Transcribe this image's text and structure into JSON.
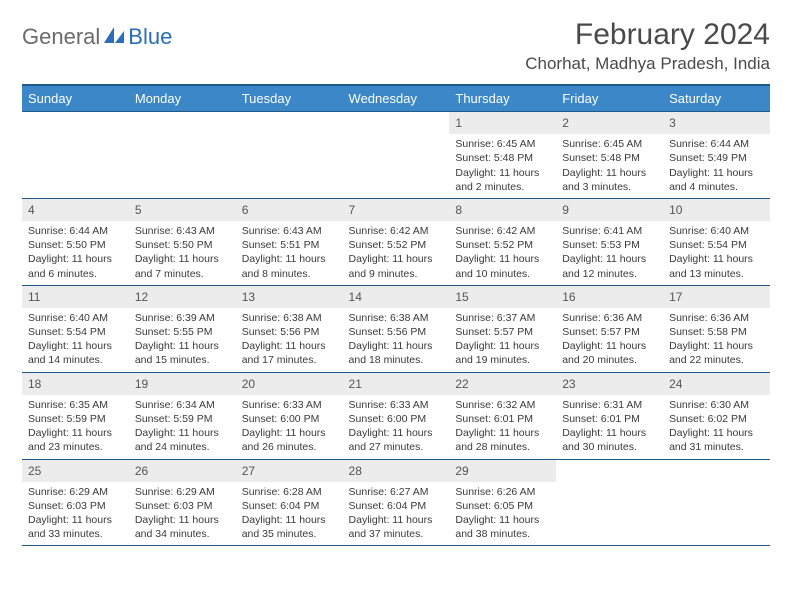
{
  "logo": {
    "text1": "General",
    "text2": "Blue"
  },
  "title": "February 2024",
  "location": "Chorhat, Madhya Pradesh, India",
  "colors": {
    "header_bg": "#3b87c8",
    "header_border": "#1f5a8a",
    "daynum_bg": "#ececec",
    "text": "#3a3a3a",
    "logo_gray": "#6b6b6b",
    "logo_blue": "#2a6db8"
  },
  "typography": {
    "month_title_fontsize": 30,
    "location_fontsize": 17,
    "dayheader_fontsize": 13,
    "daynum_fontsize": 12,
    "body_fontsize": 10.5
  },
  "day_headers": [
    "Sunday",
    "Monday",
    "Tuesday",
    "Wednesday",
    "Thursday",
    "Friday",
    "Saturday"
  ],
  "weeks": [
    [
      null,
      null,
      null,
      null,
      {
        "n": "1",
        "sr": "Sunrise: 6:45 AM",
        "ss": "Sunset: 5:48 PM",
        "dl1": "Daylight: 11 hours",
        "dl2": "and 2 minutes."
      },
      {
        "n": "2",
        "sr": "Sunrise: 6:45 AM",
        "ss": "Sunset: 5:48 PM",
        "dl1": "Daylight: 11 hours",
        "dl2": "and 3 minutes."
      },
      {
        "n": "3",
        "sr": "Sunrise: 6:44 AM",
        "ss": "Sunset: 5:49 PM",
        "dl1": "Daylight: 11 hours",
        "dl2": "and 4 minutes."
      }
    ],
    [
      {
        "n": "4",
        "sr": "Sunrise: 6:44 AM",
        "ss": "Sunset: 5:50 PM",
        "dl1": "Daylight: 11 hours",
        "dl2": "and 6 minutes."
      },
      {
        "n": "5",
        "sr": "Sunrise: 6:43 AM",
        "ss": "Sunset: 5:50 PM",
        "dl1": "Daylight: 11 hours",
        "dl2": "and 7 minutes."
      },
      {
        "n": "6",
        "sr": "Sunrise: 6:43 AM",
        "ss": "Sunset: 5:51 PM",
        "dl1": "Daylight: 11 hours",
        "dl2": "and 8 minutes."
      },
      {
        "n": "7",
        "sr": "Sunrise: 6:42 AM",
        "ss": "Sunset: 5:52 PM",
        "dl1": "Daylight: 11 hours",
        "dl2": "and 9 minutes."
      },
      {
        "n": "8",
        "sr": "Sunrise: 6:42 AM",
        "ss": "Sunset: 5:52 PM",
        "dl1": "Daylight: 11 hours",
        "dl2": "and 10 minutes."
      },
      {
        "n": "9",
        "sr": "Sunrise: 6:41 AM",
        "ss": "Sunset: 5:53 PM",
        "dl1": "Daylight: 11 hours",
        "dl2": "and 12 minutes."
      },
      {
        "n": "10",
        "sr": "Sunrise: 6:40 AM",
        "ss": "Sunset: 5:54 PM",
        "dl1": "Daylight: 11 hours",
        "dl2": "and 13 minutes."
      }
    ],
    [
      {
        "n": "11",
        "sr": "Sunrise: 6:40 AM",
        "ss": "Sunset: 5:54 PM",
        "dl1": "Daylight: 11 hours",
        "dl2": "and 14 minutes."
      },
      {
        "n": "12",
        "sr": "Sunrise: 6:39 AM",
        "ss": "Sunset: 5:55 PM",
        "dl1": "Daylight: 11 hours",
        "dl2": "and 15 minutes."
      },
      {
        "n": "13",
        "sr": "Sunrise: 6:38 AM",
        "ss": "Sunset: 5:56 PM",
        "dl1": "Daylight: 11 hours",
        "dl2": "and 17 minutes."
      },
      {
        "n": "14",
        "sr": "Sunrise: 6:38 AM",
        "ss": "Sunset: 5:56 PM",
        "dl1": "Daylight: 11 hours",
        "dl2": "and 18 minutes."
      },
      {
        "n": "15",
        "sr": "Sunrise: 6:37 AM",
        "ss": "Sunset: 5:57 PM",
        "dl1": "Daylight: 11 hours",
        "dl2": "and 19 minutes."
      },
      {
        "n": "16",
        "sr": "Sunrise: 6:36 AM",
        "ss": "Sunset: 5:57 PM",
        "dl1": "Daylight: 11 hours",
        "dl2": "and 20 minutes."
      },
      {
        "n": "17",
        "sr": "Sunrise: 6:36 AM",
        "ss": "Sunset: 5:58 PM",
        "dl1": "Daylight: 11 hours",
        "dl2": "and 22 minutes."
      }
    ],
    [
      {
        "n": "18",
        "sr": "Sunrise: 6:35 AM",
        "ss": "Sunset: 5:59 PM",
        "dl1": "Daylight: 11 hours",
        "dl2": "and 23 minutes."
      },
      {
        "n": "19",
        "sr": "Sunrise: 6:34 AM",
        "ss": "Sunset: 5:59 PM",
        "dl1": "Daylight: 11 hours",
        "dl2": "and 24 minutes."
      },
      {
        "n": "20",
        "sr": "Sunrise: 6:33 AM",
        "ss": "Sunset: 6:00 PM",
        "dl1": "Daylight: 11 hours",
        "dl2": "and 26 minutes."
      },
      {
        "n": "21",
        "sr": "Sunrise: 6:33 AM",
        "ss": "Sunset: 6:00 PM",
        "dl1": "Daylight: 11 hours",
        "dl2": "and 27 minutes."
      },
      {
        "n": "22",
        "sr": "Sunrise: 6:32 AM",
        "ss": "Sunset: 6:01 PM",
        "dl1": "Daylight: 11 hours",
        "dl2": "and 28 minutes."
      },
      {
        "n": "23",
        "sr": "Sunrise: 6:31 AM",
        "ss": "Sunset: 6:01 PM",
        "dl1": "Daylight: 11 hours",
        "dl2": "and 30 minutes."
      },
      {
        "n": "24",
        "sr": "Sunrise: 6:30 AM",
        "ss": "Sunset: 6:02 PM",
        "dl1": "Daylight: 11 hours",
        "dl2": "and 31 minutes."
      }
    ],
    [
      {
        "n": "25",
        "sr": "Sunrise: 6:29 AM",
        "ss": "Sunset: 6:03 PM",
        "dl1": "Daylight: 11 hours",
        "dl2": "and 33 minutes."
      },
      {
        "n": "26",
        "sr": "Sunrise: 6:29 AM",
        "ss": "Sunset: 6:03 PM",
        "dl1": "Daylight: 11 hours",
        "dl2": "and 34 minutes."
      },
      {
        "n": "27",
        "sr": "Sunrise: 6:28 AM",
        "ss": "Sunset: 6:04 PM",
        "dl1": "Daylight: 11 hours",
        "dl2": "and 35 minutes."
      },
      {
        "n": "28",
        "sr": "Sunrise: 6:27 AM",
        "ss": "Sunset: 6:04 PM",
        "dl1": "Daylight: 11 hours",
        "dl2": "and 37 minutes."
      },
      {
        "n": "29",
        "sr": "Sunrise: 6:26 AM",
        "ss": "Sunset: 6:05 PM",
        "dl1": "Daylight: 11 hours",
        "dl2": "and 38 minutes."
      },
      null,
      null
    ]
  ]
}
